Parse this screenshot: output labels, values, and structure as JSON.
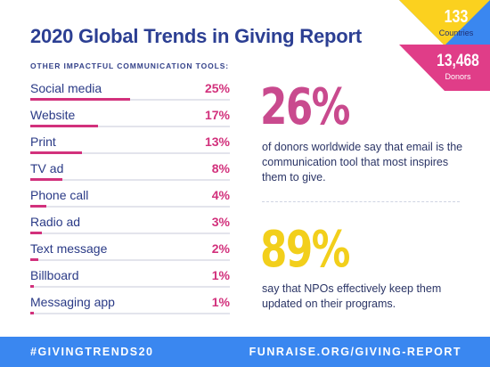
{
  "header": {
    "title": "2020 Global Trends in Giving Report",
    "subtitle": "OTHER IMPACTFUL COMMUNICATION TOOLS:"
  },
  "chart_data": {
    "type": "bar",
    "title": "OTHER IMPACTFUL COMMUNICATION TOOLS:",
    "categories": [
      "Social media",
      "Website",
      "Print",
      "TV ad",
      "Phone call",
      "Radio ad",
      "Text message",
      "Billboard",
      "Messaging app"
    ],
    "values": [
      25,
      17,
      13,
      8,
      4,
      3,
      2,
      1,
      1
    ],
    "value_labels": [
      "25%",
      "17%",
      "13%",
      "8%",
      "4%",
      "3%",
      "2%",
      "1%",
      "1%"
    ],
    "unit": "%",
    "xlim": [
      0,
      50
    ],
    "colors": {
      "fill": "#d2317c",
      "track": "#e3e4ec"
    }
  },
  "corner": {
    "countries_value": "133",
    "countries_label": "Countries",
    "donors_value": "13,468",
    "donors_label": "Donors",
    "colors": {
      "yellow": "#fbd11f",
      "blue": "#3a87f0",
      "pink": "#e03d88"
    }
  },
  "stats": [
    {
      "value": "26%",
      "text": "of donors worldwide say that email is the communication tool that most inspires them to give.",
      "color": "#c94a8e"
    },
    {
      "value": "89%",
      "text": "say that NPOs effectively keep them updated on their programs.",
      "color": "#f2cf1b"
    }
  ],
  "footer": {
    "hashtag": "#GIVINGTRENDS20",
    "url": "FUNRAISE.ORG/GIVING-REPORT",
    "color": "#3a87f0"
  }
}
